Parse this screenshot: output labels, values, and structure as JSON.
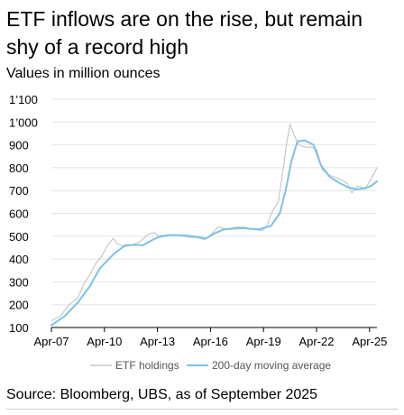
{
  "page": {
    "title": "ETF inflows are on the rise, but remain shy of a record high",
    "subtitle": "Values in million ounces",
    "source": "Source: Bloomberg, UBS, as of September 2025"
  },
  "chart_data": {
    "type": "line",
    "title": "ETF inflows are on the rise, but remain shy of a record high",
    "ylabel": "Values in million ounces",
    "ylim": [
      100,
      1100
    ],
    "yticks": [
      100,
      200,
      300,
      400,
      500,
      600,
      700,
      800,
      900,
      1000,
      1100
    ],
    "ytick_labels": [
      "100",
      "200",
      "300",
      "400",
      "500",
      "600",
      "700",
      "800",
      "900",
      "1’000",
      "1’100"
    ],
    "xlim": [
      "2007-04",
      "2025-09"
    ],
    "xticks": [
      "2007-04",
      "2010-04",
      "2013-04",
      "2016-04",
      "2019-04",
      "2022-04",
      "2025-04"
    ],
    "xtick_labels": [
      "Apr-07",
      "Apr-10",
      "Apr-13",
      "Apr-16",
      "Apr-19",
      "Apr-22",
      "Apr-25"
    ],
    "grid": "horizontal",
    "legend": "bottom",
    "series": [
      {
        "name": "ETF holdings",
        "color": "#c8c8c8",
        "points": [
          [
            "2007-04",
            130
          ],
          [
            "2007-10",
            150
          ],
          [
            "2008-04",
            200
          ],
          [
            "2008-10",
            230
          ],
          [
            "2009-02",
            290
          ],
          [
            "2009-06",
            330
          ],
          [
            "2009-10",
            380
          ],
          [
            "2010-02",
            410
          ],
          [
            "2010-06",
            460
          ],
          [
            "2010-10",
            490
          ],
          [
            "2011-01",
            465
          ],
          [
            "2011-06",
            455
          ],
          [
            "2011-10",
            460
          ],
          [
            "2012-04",
            475
          ],
          [
            "2012-10",
            510
          ],
          [
            "2013-02",
            515
          ],
          [
            "2013-06",
            495
          ],
          [
            "2014-01",
            505
          ],
          [
            "2014-06",
            505
          ],
          [
            "2015-01",
            495
          ],
          [
            "2015-06",
            495
          ],
          [
            "2015-12",
            485
          ],
          [
            "2016-04",
            505
          ],
          [
            "2016-09",
            540
          ],
          [
            "2017-03",
            530
          ],
          [
            "2017-09",
            540
          ],
          [
            "2018-03",
            540
          ],
          [
            "2018-09",
            530
          ],
          [
            "2019-03",
            525
          ],
          [
            "2019-06",
            540
          ],
          [
            "2019-10",
            610
          ],
          [
            "2020-02",
            650
          ],
          [
            "2020-05",
            780
          ],
          [
            "2020-08",
            920
          ],
          [
            "2020-10",
            990
          ],
          [
            "2021-01",
            940
          ],
          [
            "2021-04",
            900
          ],
          [
            "2021-08",
            890
          ],
          [
            "2022-01",
            890
          ],
          [
            "2022-04",
            880
          ],
          [
            "2022-08",
            790
          ],
          [
            "2022-12",
            770
          ],
          [
            "2023-04",
            760
          ],
          [
            "2023-08",
            750
          ],
          [
            "2024-01",
            730
          ],
          [
            "2024-04",
            690
          ],
          [
            "2024-08",
            720
          ],
          [
            "2025-01",
            710
          ],
          [
            "2025-05",
            750
          ],
          [
            "2025-09",
            800
          ]
        ]
      },
      {
        "name": "200-day moving average",
        "color": "#7bc2e6",
        "points": [
          [
            "2007-04",
            110
          ],
          [
            "2008-01",
            150
          ],
          [
            "2008-10",
            210
          ],
          [
            "2009-06",
            280
          ],
          [
            "2010-01",
            360
          ],
          [
            "2010-10",
            420
          ],
          [
            "2011-06",
            460
          ],
          [
            "2012-01",
            462
          ],
          [
            "2012-06",
            460
          ],
          [
            "2013-01",
            485
          ],
          [
            "2013-06",
            500
          ],
          [
            "2014-01",
            505
          ],
          [
            "2015-01",
            502
          ],
          [
            "2016-01",
            490
          ],
          [
            "2016-06",
            510
          ],
          [
            "2017-01",
            530
          ],
          [
            "2018-01",
            535
          ],
          [
            "2019-01",
            530
          ],
          [
            "2019-09",
            545
          ],
          [
            "2020-03",
            600
          ],
          [
            "2020-07",
            700
          ],
          [
            "2020-11",
            830
          ],
          [
            "2021-03",
            915
          ],
          [
            "2021-08",
            920
          ],
          [
            "2022-02",
            900
          ],
          [
            "2022-07",
            810
          ],
          [
            "2023-01",
            760
          ],
          [
            "2023-07",
            735
          ],
          [
            "2024-01",
            715
          ],
          [
            "2024-07",
            705
          ],
          [
            "2025-01",
            710
          ],
          [
            "2025-05",
            720
          ],
          [
            "2025-09",
            740
          ]
        ]
      }
    ]
  }
}
